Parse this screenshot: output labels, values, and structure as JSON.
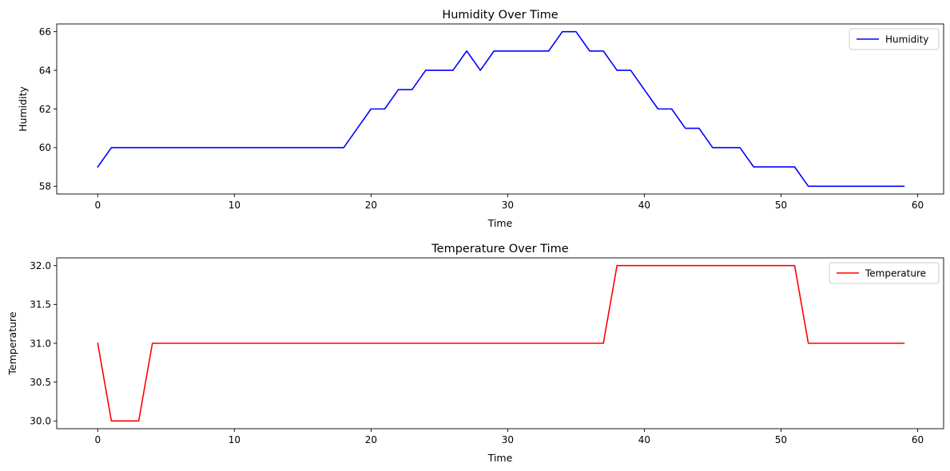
{
  "chart_data": [
    {
      "type": "line",
      "title": "Humidity Over Time",
      "xlabel": "Time",
      "ylabel": "Humidity",
      "xlim": [
        -3,
        61.9
      ],
      "ylim": [
        57.6,
        66.4
      ],
      "xticks": [
        0,
        10,
        20,
        30,
        40,
        50,
        60
      ],
      "yticks": [
        58,
        60,
        62,
        64,
        66
      ],
      "xtick_labels": [
        "0",
        "10",
        "20",
        "30",
        "40",
        "50",
        "60"
      ],
      "ytick_labels": [
        "58",
        "60",
        "62",
        "64",
        "66"
      ],
      "grid": false,
      "legend_position": "top-right",
      "series": [
        {
          "name": "Humidity",
          "color": "#0000ff",
          "x": [
            0,
            1,
            2,
            3,
            4,
            5,
            6,
            7,
            8,
            9,
            10,
            11,
            12,
            13,
            14,
            15,
            16,
            17,
            18,
            19,
            20,
            21,
            22,
            23,
            24,
            25,
            26,
            27,
            28,
            29,
            30,
            31,
            32,
            33,
            34,
            35,
            36,
            37,
            38,
            39,
            40,
            41,
            42,
            43,
            44,
            45,
            46,
            47,
            48,
            49,
            50,
            51,
            52,
            53,
            54,
            55,
            56,
            57,
            58,
            59
          ],
          "values": [
            59,
            60,
            60,
            60,
            60,
            60,
            60,
            60,
            60,
            60,
            60,
            60,
            60,
            60,
            60,
            60,
            60,
            60,
            60,
            61,
            62,
            62,
            63,
            63,
            64,
            64,
            64,
            65,
            64,
            65,
            65,
            65,
            65,
            65,
            66,
            66,
            65,
            65,
            64,
            64,
            63,
            62,
            62,
            61,
            61,
            60,
            60,
            60,
            59,
            59,
            59,
            59,
            58,
            58,
            58,
            58,
            58,
            58,
            58,
            58
          ]
        }
      ]
    },
    {
      "type": "line",
      "title": "Temperature Over Time",
      "xlabel": "Time",
      "ylabel": "Temperature",
      "xlim": [
        -3,
        61.9
      ],
      "ylim": [
        29.9,
        32.1
      ],
      "xticks": [
        0,
        10,
        20,
        30,
        40,
        50,
        60
      ],
      "yticks": [
        30.0,
        30.5,
        31.0,
        31.5,
        32.0
      ],
      "xtick_labels": [
        "0",
        "10",
        "20",
        "30",
        "40",
        "50",
        "60"
      ],
      "ytick_labels": [
        "30.0",
        "30.5",
        "31.0",
        "31.5",
        "32.0"
      ],
      "grid": false,
      "legend_position": "top-right",
      "series": [
        {
          "name": "Temperature",
          "color": "#ff0000",
          "x": [
            0,
            1,
            2,
            3,
            4,
            5,
            6,
            7,
            8,
            9,
            10,
            11,
            12,
            13,
            14,
            15,
            16,
            17,
            18,
            19,
            20,
            21,
            22,
            23,
            24,
            25,
            26,
            27,
            28,
            29,
            30,
            31,
            32,
            33,
            34,
            35,
            36,
            37,
            38,
            39,
            40,
            41,
            42,
            43,
            44,
            45,
            46,
            47,
            48,
            49,
            50,
            51,
            52,
            53,
            54,
            55,
            56,
            57,
            58,
            59
          ],
          "values": [
            31,
            30,
            30,
            30,
            31,
            31,
            31,
            31,
            31,
            31,
            31,
            31,
            31,
            31,
            31,
            31,
            31,
            31,
            31,
            31,
            31,
            31,
            31,
            31,
            31,
            31,
            31,
            31,
            31,
            31,
            31,
            31,
            31,
            31,
            31,
            31,
            31,
            31,
            32,
            32,
            32,
            32,
            32,
            32,
            32,
            32,
            32,
            32,
            32,
            32,
            32,
            32,
            31,
            31,
            31,
            31,
            31,
            31,
            31,
            31
          ]
        }
      ]
    }
  ]
}
